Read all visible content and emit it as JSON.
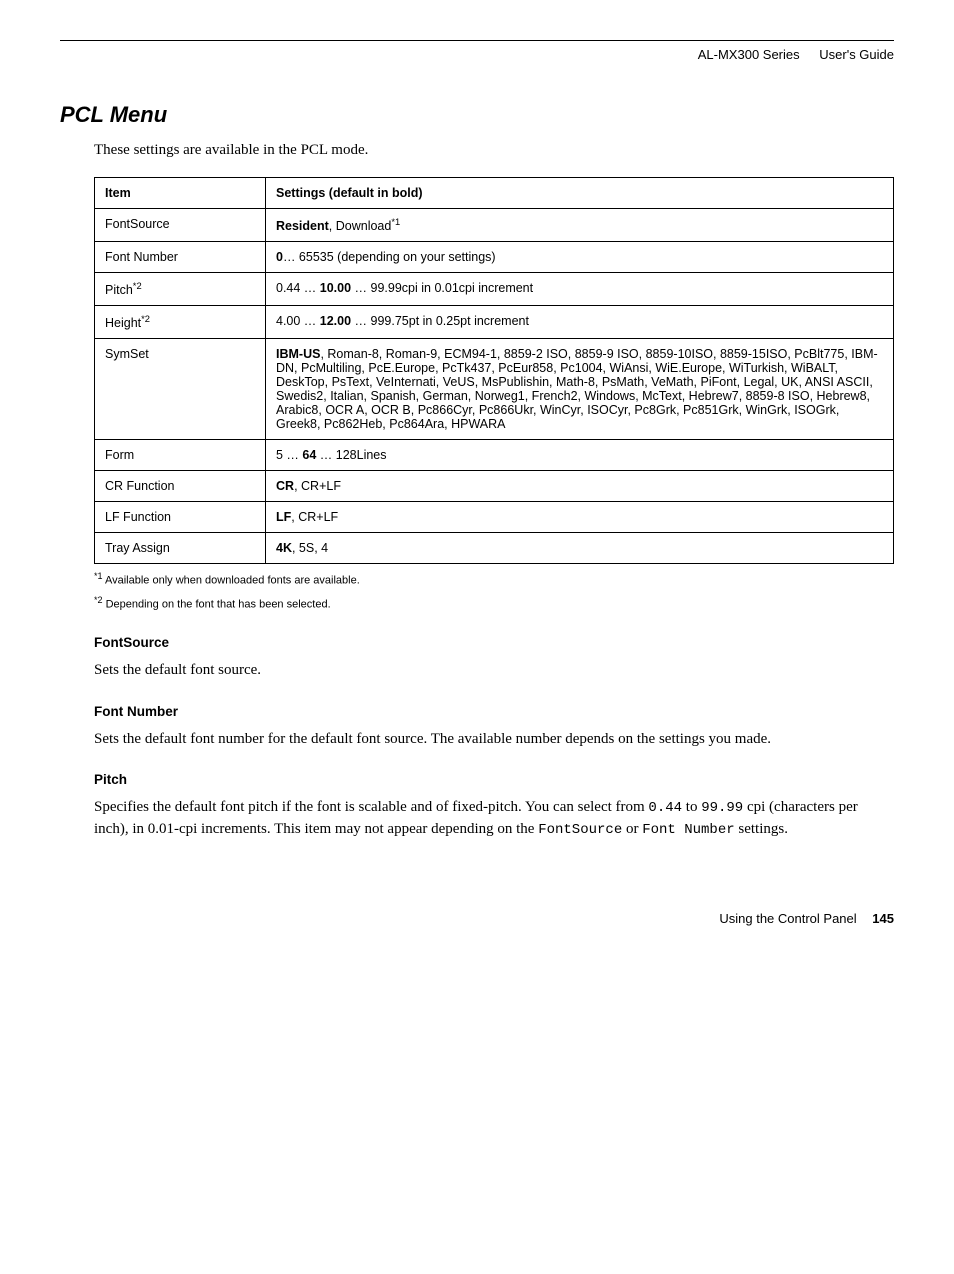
{
  "header": {
    "title": "AL-MX300 Series",
    "subtitle": "User's Guide"
  },
  "section_title": "PCL Menu",
  "intro": "These settings are available in the PCL mode.",
  "table": {
    "headers": [
      "Item",
      "Settings (default in bold)"
    ],
    "rows": [
      {
        "item_html": "FontSource",
        "setting_html": "<b>Resident</b>, Download<sup>*1</sup>"
      },
      {
        "item_html": "Font Number",
        "setting_html": "<b>0</b>… 65535 (depending on your settings)"
      },
      {
        "item_html": "Pitch<sup>*2</sup>",
        "setting_html": "0.44 … <b>10.00</b> … 99.99cpi in 0.01cpi increment"
      },
      {
        "item_html": "Height<sup>*2</sup>",
        "setting_html": "4.00 … <b>12.00</b> … 999.75pt in 0.25pt increment"
      },
      {
        "item_html": "SymSet",
        "setting_html": "<b>IBM-US</b>, Roman-8, Roman-9, ECM94-1, 8859-2 ISO, 8859-9 ISO, 8859-10ISO, 8859-15ISO, PcBlt775, IBM-DN, PcMultiling, PcE.Europe, PcTk437, PcEur858, Pc1004, WiAnsi, WiE.Europe, WiTurkish, WiBALT, DeskTop, PsText, VeInternati, VeUS, MsPublishin, Math-8, PsMath, VeMath, PiFont, Legal, UK, ANSI ASCII, Swedis2, Italian, Spanish, German, Norweg1, French2, Windows, McText, Hebrew7, 8859-8 ISO, Hebrew8, Arabic8, OCR A, OCR B, Pc866Cyr, Pc866Ukr, WinCyr, ISOCyr, Pc8Grk, Pc851Grk, WinGrk, ISOGrk, Greek8, Pc862Heb, Pc864Ara, HPWARA"
      },
      {
        "item_html": "Form",
        "setting_html": "5 … <b>64</b> … 128Lines"
      },
      {
        "item_html": "CR Function",
        "setting_html": "<b>CR</b>, CR+LF"
      },
      {
        "item_html": "LF Function",
        "setting_html": "<b>LF</b>, CR+LF"
      },
      {
        "item_html": "Tray Assign",
        "setting_html": "<b>4K</b>, 5S, 4"
      }
    ]
  },
  "footnotes": [
    {
      "mark": "*1",
      "text": "Available only when downloaded fonts are available."
    },
    {
      "mark": "*2",
      "text": "Depending on the font that has been selected."
    }
  ],
  "fields": [
    {
      "title": "FontSource",
      "desc_html": "Sets the default font source."
    },
    {
      "title": "Font Number",
      "desc_html": "Sets the default font number for the default font source. The available number depends on the settings you made."
    },
    {
      "title": "Pitch",
      "desc_html": "Specifies the default font pitch if the font is scalable and of fixed-pitch. You can select from <span class=\"mono\">0.44</span> to <span class=\"mono\">99.99</span> cpi (characters per inch), in 0.01-cpi increments. This item may not appear depending on the <span class=\"mono\">FontSource</span> or <span class=\"mono\">Font Number</span> settings."
    }
  ],
  "footer": {
    "chapter": "Using the Control Panel",
    "page": "145"
  }
}
